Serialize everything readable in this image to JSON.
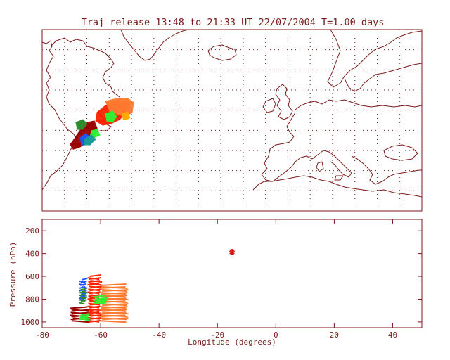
{
  "title": "Traj release 13:48 to 21:33 UT 22/07/2004    T=1.00 days",
  "colors": {
    "frame": "#7a1a1a",
    "coast": "#7a1a1a",
    "grid": "#7a1a1a",
    "text": "#7a1a1a"
  },
  "chart_data": [
    {
      "type": "map",
      "panel": "trajectory-map",
      "grid": true,
      "grid_style": "dotted",
      "trajectory_clusters": [
        {
          "name": "",
          "color": "#ff2200"
        },
        {
          "name": "",
          "color": "#ff7a30"
        },
        {
          "name": "",
          "color": "#9a0000"
        },
        {
          "name": "",
          "color": "#2a8c2a"
        },
        {
          "name": "",
          "color": "#33ee33"
        },
        {
          "name": "",
          "color": "#2255ff"
        },
        {
          "name": "",
          "color": "#1a9a9a"
        },
        {
          "name": "",
          "color": "#ffaa00"
        }
      ]
    },
    {
      "type": "scatter",
      "panel": "pressure-longitude",
      "xlabel": "Longitude  (degrees)",
      "ylabel": "Pressure  (hPa)",
      "xlim": [
        -80,
        50
      ],
      "ylim": [
        100,
        1050
      ],
      "y_inverted": true,
      "xticks": [
        -80,
        -60,
        -40,
        -20,
        0,
        20,
        40
      ],
      "yticks": [
        200,
        400,
        600,
        800,
        1000
      ],
      "release_marker": {
        "x": -15,
        "y": 385,
        "color": "#e01010"
      },
      "series": [
        {
          "name": "",
          "color": "#9a0000",
          "x_range": [
            -70,
            -64
          ],
          "y_range": [
            880,
            990
          ]
        },
        {
          "name": "",
          "color": "#ff2200",
          "x_range": [
            -64,
            -60
          ],
          "y_range": [
            600,
            1000
          ]
        },
        {
          "name": "",
          "color": "#ff7a30",
          "x_range": [
            -60,
            -51
          ],
          "y_range": [
            680,
            990
          ]
        },
        {
          "name": "",
          "color": "#2255ff",
          "x_range": [
            -67,
            -65
          ],
          "y_range": [
            630,
            790
          ]
        },
        {
          "name": "",
          "color": "#2a8c2a",
          "x_range": [
            -67,
            -65
          ],
          "y_range": [
            720,
            830
          ]
        },
        {
          "name": "",
          "color": "#33ee33",
          "x_range": [
            -62,
            -58
          ],
          "y_range": [
            780,
            840
          ]
        },
        {
          "name": "",
          "color": "#33ee33",
          "x_range": [
            -67,
            -64
          ],
          "y_range": [
            940,
            980
          ]
        }
      ]
    }
  ]
}
